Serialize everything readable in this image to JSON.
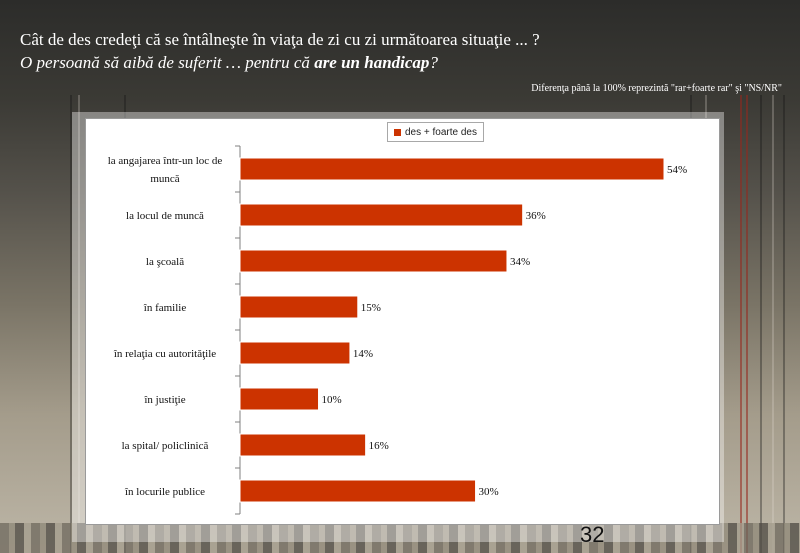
{
  "header": {
    "question_line1": "Cât de des credeţi că se întâlneşte în viaţa de zi cu zi următoarea situaţie ... ?",
    "question_line2_prefix": "O persoană să aibă de suferit … pentru că ",
    "question_line2_bold": "are un handicap",
    "question_line2_suffix": "?",
    "note": "Diferenţa până la 100% reprezintă  \"rar+foarte rar\" şi \"NS/NR\""
  },
  "page_number": "32",
  "colors": {
    "bar": "#cc3300"
  },
  "chart_data": {
    "type": "bar",
    "orientation": "horizontal",
    "categories": [
      "la angajarea într-un loc de muncă",
      "la locul de muncă",
      "la şcoală",
      "în familie",
      "în relaţia cu autorităţile",
      "în justiţie",
      "la spital/ policlinică",
      "în locurile publice"
    ],
    "category_lines": [
      [
        "la angajarea într-un loc de",
        "muncă"
      ],
      [
        "la locul de muncă"
      ],
      [
        "la şcoală"
      ],
      [
        "în familie"
      ],
      [
        "în relaţia cu autorităţile"
      ],
      [
        "în justiţie"
      ],
      [
        "la spital/ policlinică"
      ],
      [
        "în locurile publice"
      ]
    ],
    "series": [
      {
        "name": "des + foarte des",
        "values": [
          54,
          36,
          34,
          15,
          14,
          10,
          16,
          30
        ]
      }
    ],
    "value_labels": [
      "54%",
      "36%",
      "34%",
      "15%",
      "14%",
      "10%",
      "16%",
      "30%"
    ],
    "xlim": [
      0,
      60
    ],
    "legend_position": "top",
    "grid": false
  }
}
